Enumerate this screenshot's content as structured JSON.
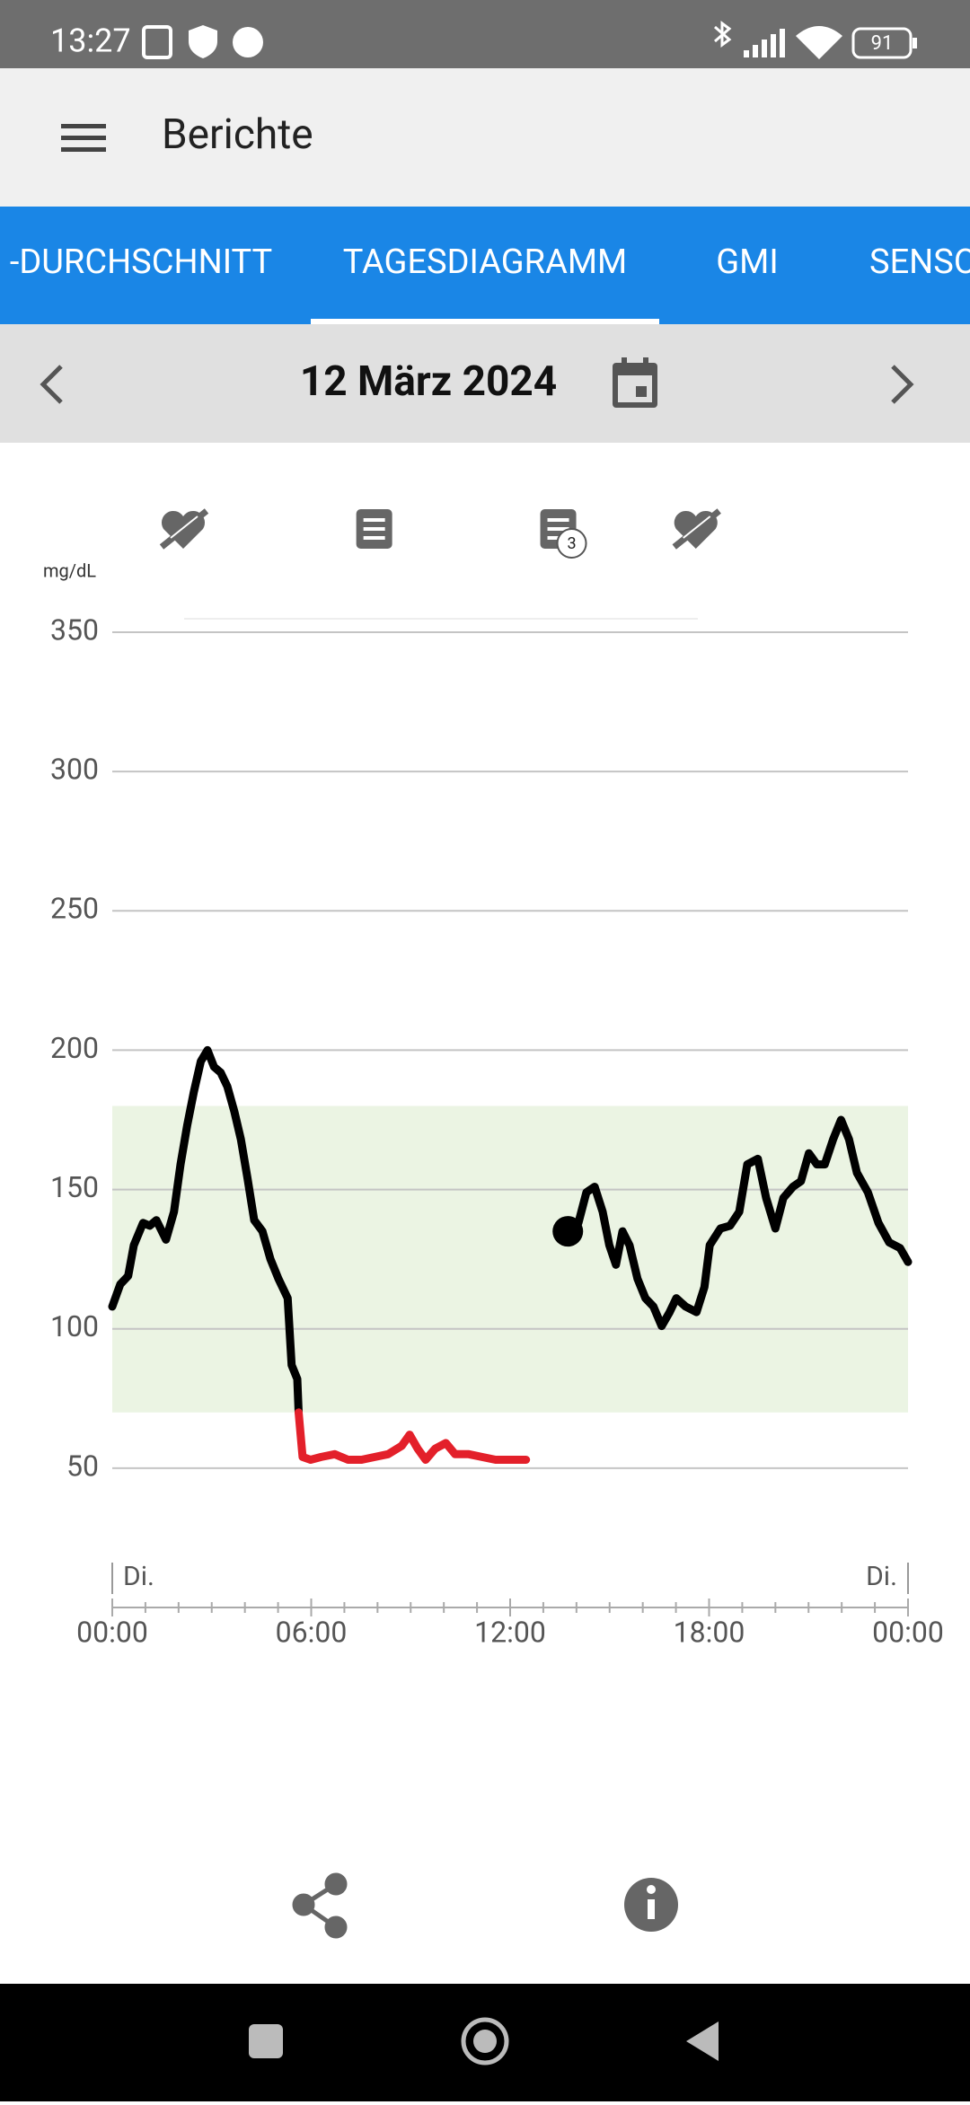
{
  "status_bar": {
    "time": "13:27",
    "battery": "91"
  },
  "app_bar": {
    "title": "Berichte"
  },
  "tabs": [
    "-DURCHSCHNITT",
    "TAGESDIAGRAMM",
    "GMI",
    "SENSO"
  ],
  "date_bar": {
    "date": "12 März 2024"
  },
  "chart_data": {
    "type": "line",
    "y_label": "mg/dL",
    "xlim": [
      0,
      24
    ],
    "ylim": [
      0,
      350
    ],
    "yticks": [
      50,
      100,
      150,
      200,
      250,
      300,
      350
    ],
    "xticks": [
      {
        "value": 0,
        "label": "00:00"
      },
      {
        "value": 6,
        "label": "06:00"
      },
      {
        "value": 12,
        "label": "12:00"
      },
      {
        "value": 18,
        "label": "18:00"
      },
      {
        "value": 24,
        "label": "00:00"
      }
    ],
    "xticks_minor": [
      1,
      2,
      3,
      4,
      5,
      7,
      8,
      9,
      10,
      11,
      13,
      14,
      15,
      16,
      17,
      19,
      20,
      21,
      22,
      23
    ],
    "day_labels": [
      "Di.",
      "Di."
    ],
    "grid": true,
    "target_range": [
      70,
      180
    ],
    "target_color": "#ebf4e3",
    "series": [
      {
        "color": "#000000",
        "x": [
          0,
          0.24,
          0.48,
          0.65,
          0.93,
          1.13,
          1.33,
          1.62,
          1.86,
          2.06,
          2.26,
          2.46,
          2.67,
          2.87,
          3.07,
          3.27,
          3.47,
          3.68,
          3.88,
          4.08,
          4.28,
          4.53,
          4.77,
          5.01,
          5.29,
          5.41,
          5.58,
          5.62,
          null,
          13.74,
          14.06,
          14.3,
          14.55,
          14.79,
          14.99,
          15.19,
          15.39,
          15.6,
          15.84,
          16.08,
          16.32,
          16.57,
          16.81,
          17.01,
          17.29,
          17.62,
          17.86,
          18.02,
          18.34,
          18.63,
          18.91,
          19.15,
          19.47,
          19.72,
          20,
          20.24,
          20.53,
          20.77,
          21.01,
          21.25,
          21.49,
          21.74,
          21.98,
          22.22,
          22.46,
          22.79,
          23.11,
          23.43,
          23.76,
          24
        ],
        "values": [
          108,
          116,
          119,
          130,
          138,
          137,
          139,
          132,
          142,
          159,
          173,
          185,
          196,
          200,
          194,
          192,
          187,
          178,
          168,
          154,
          139,
          135,
          125,
          118,
          111,
          87,
          82,
          70,
          null,
          135,
          138,
          149,
          151,
          142,
          130,
          123,
          135,
          130,
          118,
          111,
          108,
          101,
          106,
          111,
          108,
          106,
          115,
          130,
          136,
          137,
          142,
          159,
          161,
          147,
          136,
          147,
          151,
          153,
          163,
          159,
          159,
          168,
          175,
          168,
          156,
          149,
          138,
          131,
          129,
          124
        ]
      },
      {
        "color": "#e3202a",
        "x": [
          5.62,
          5.74,
          5.98,
          6.3,
          6.71,
          7.11,
          7.52,
          7.92,
          8.32,
          8.73,
          8.97,
          9.21,
          9.45,
          9.74,
          10.06,
          10.34,
          10.75,
          11.15,
          11.56,
          11.96,
          12.48
        ],
        "values": [
          70,
          54,
          53,
          54,
          55,
          53,
          53,
          54,
          55,
          58,
          62,
          57,
          53,
          57,
          59,
          55,
          55,
          54,
          53,
          53,
          53
        ]
      }
    ],
    "markers": [
      {
        "x": 13.74,
        "y": 135,
        "color": "#000000"
      }
    ],
    "events": [
      {
        "x": 2.14,
        "kind": "insulin"
      },
      {
        "x": 7.9,
        "kind": "note"
      },
      {
        "x": 13.45,
        "kind": "note",
        "count": "3"
      },
      {
        "x": 17.6,
        "kind": "insulin"
      }
    ]
  }
}
